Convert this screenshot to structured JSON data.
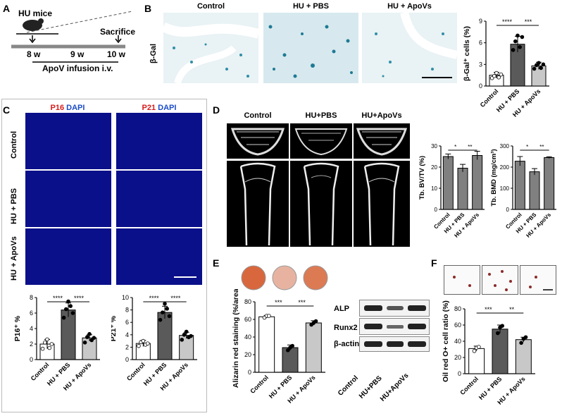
{
  "panels": {
    "A": "A",
    "B": "B",
    "C": "C",
    "D": "D",
    "E": "E",
    "F": "F"
  },
  "A": {
    "mice_label": "HU mice",
    "sacrifice_label": "Sacrifice",
    "weeks": [
      "8 w",
      "9 w",
      "10 w"
    ],
    "infusion_label": "ApoV infusion i.v."
  },
  "B": {
    "columns": [
      "Control",
      "HU + PBS",
      "HU + ApoVs"
    ],
    "row_label": "β-Gal",
    "ylabel": "β-Gal⁺ cells (%)"
  },
  "C": {
    "p16_title": "P16",
    "p21_title": "P21",
    "dapi": "DAPI",
    "rows": [
      "Control",
      "HU + PBS",
      "HU + ApoVs"
    ]
  },
  "D": {
    "columns": [
      "Control",
      "HU+PBS",
      "HU+ApoVs"
    ]
  },
  "E": {
    "ylabel": "Alizarin red staining (%/area)",
    "wb_labels": [
      "ALP",
      "Runx2",
      "β-actin"
    ],
    "wb_columns": [
      "Control",
      "HU+PBS",
      "HU+ApoVs"
    ]
  },
  "F": {
    "ylabel": "Oil red O+ cell ratio (%)"
  },
  "chart_data": [
    {
      "id": "B",
      "type": "bar",
      "categories": [
        "Control",
        "HU + PBS",
        "HU + ApoVs"
      ],
      "values": [
        1.5,
        5.8,
        2.8
      ],
      "errors": [
        0.4,
        1.1,
        0.5
      ],
      "ylabel": "β-Gal⁺ cells (%)",
      "ylim": [
        0,
        9
      ],
      "yticks": [
        0,
        3,
        6,
        9
      ],
      "sig": [
        "****",
        "***"
      ],
      "points": [
        [
          1.1,
          1.4,
          1.8,
          1.2,
          1.6
        ],
        [
          5.0,
          6.2,
          7.0,
          5.4,
          6.8
        ],
        [
          2.4,
          2.9,
          3.2,
          2.5,
          3.0
        ]
      ],
      "colors": [
        "#ffffff",
        "#5a5a5a",
        "#c8c8c8"
      ]
    },
    {
      "id": "C1",
      "type": "bar",
      "categories": [
        "Control",
        "HU + PBS",
        "HU + ApoVs"
      ],
      "values": [
        2.0,
        6.4,
        2.8
      ],
      "errors": [
        0.6,
        0.9,
        0.4
      ],
      "ylabel": "P16⁺ %",
      "ylim": [
        0,
        8
      ],
      "yticks": [
        0,
        2,
        4,
        6,
        8
      ],
      "sig": [
        "****",
        "****"
      ],
      "points": [
        [
          1.4,
          2.2,
          2.6,
          1.5,
          2.0
        ],
        [
          5.4,
          6.5,
          7.5,
          6.9,
          6.0
        ],
        [
          2.2,
          2.9,
          3.3,
          2.5,
          2.8
        ]
      ],
      "colors": [
        "#ffffff",
        "#5a5a5a",
        "#c8c8c8"
      ]
    },
    {
      "id": "C2",
      "type": "bar",
      "categories": [
        "Control",
        "HU + PBS",
        "HU + ApoVs"
      ],
      "values": [
        2.6,
        7.6,
        3.9
      ],
      "errors": [
        0.5,
        1.0,
        0.5
      ],
      "ylabel": "P21⁺ %",
      "ylim": [
        0,
        10
      ],
      "yticks": [
        0,
        2,
        4,
        6,
        8,
        10
      ],
      "sig": [
        "****",
        "****"
      ],
      "points": [
        [
          2.2,
          2.8,
          3.0,
          2.4,
          2.6
        ],
        [
          6.4,
          7.6,
          9.0,
          8.2,
          7.0
        ],
        [
          3.2,
          4.0,
          4.5,
          3.6,
          3.8
        ]
      ],
      "colors": [
        "#ffffff",
        "#5a5a5a",
        "#c8c8c8"
      ]
    },
    {
      "id": "D1",
      "type": "bar",
      "categories": [
        "Control",
        "HU + PBS",
        "HU + ApoVs"
      ],
      "values": [
        25,
        19.5,
        25.5
      ],
      "errors": [
        1.2,
        1.8,
        2.0
      ],
      "ylabel": "Tb. BV/TV (%)",
      "ylim": [
        0,
        30
      ],
      "yticks": [
        0,
        10,
        20,
        30
      ],
      "sig": [
        "*",
        "**"
      ],
      "points": [],
      "colors": [
        "#808080",
        "#808080",
        "#808080"
      ]
    },
    {
      "id": "D2",
      "type": "bar",
      "categories": [
        "Control",
        "HU + PBS",
        "HU + ApoVs"
      ],
      "values": [
        228,
        178,
        245
      ],
      "errors": [
        22,
        15,
        4
      ],
      "ylabel": "Tb. BMD (mg/cm³)",
      "ylim": [
        0,
        300
      ],
      "yticks": [
        0,
        100,
        200,
        300
      ],
      "sig": [
        "*",
        "**"
      ],
      "points": [],
      "colors": [
        "#808080",
        "#808080",
        "#808080"
      ]
    },
    {
      "id": "E",
      "type": "bar",
      "categories": [
        "Control",
        "HU + PBS",
        "HU + ApoVs"
      ],
      "values": [
        63,
        28,
        56
      ],
      "errors": [
        1.5,
        3.0,
        2.5
      ],
      "ylabel": "Alizarin red staining (%/area)",
      "ylim": [
        0,
        80
      ],
      "yticks": [
        0,
        20,
        40,
        60,
        80
      ],
      "sig": [
        "***",
        "***"
      ],
      "points": [
        [
          62,
          64,
          64
        ],
        [
          25,
          28,
          30
        ],
        [
          54,
          56,
          58
        ]
      ],
      "colors": [
        "#ffffff",
        "#5a5a5a",
        "#c8c8c8"
      ]
    },
    {
      "id": "F",
      "type": "bar",
      "categories": [
        "Control",
        "HU + PBS",
        "HU + ApoVs"
      ],
      "values": [
        31,
        55,
        42
      ],
      "errors": [
        3,
        5,
        3
      ],
      "ylabel": "Oil red O+ cell ratio (%)",
      "ylim": [
        0,
        80
      ],
      "yticks": [
        0,
        20,
        40,
        60,
        80
      ],
      "sig": [
        "***",
        "**"
      ],
      "points": [
        [
          28,
          32,
          33
        ],
        [
          50,
          57,
          59
        ],
        [
          38,
          43,
          45
        ]
      ],
      "colors": [
        "#ffffff",
        "#5a5a5a",
        "#c8c8c8"
      ]
    }
  ]
}
